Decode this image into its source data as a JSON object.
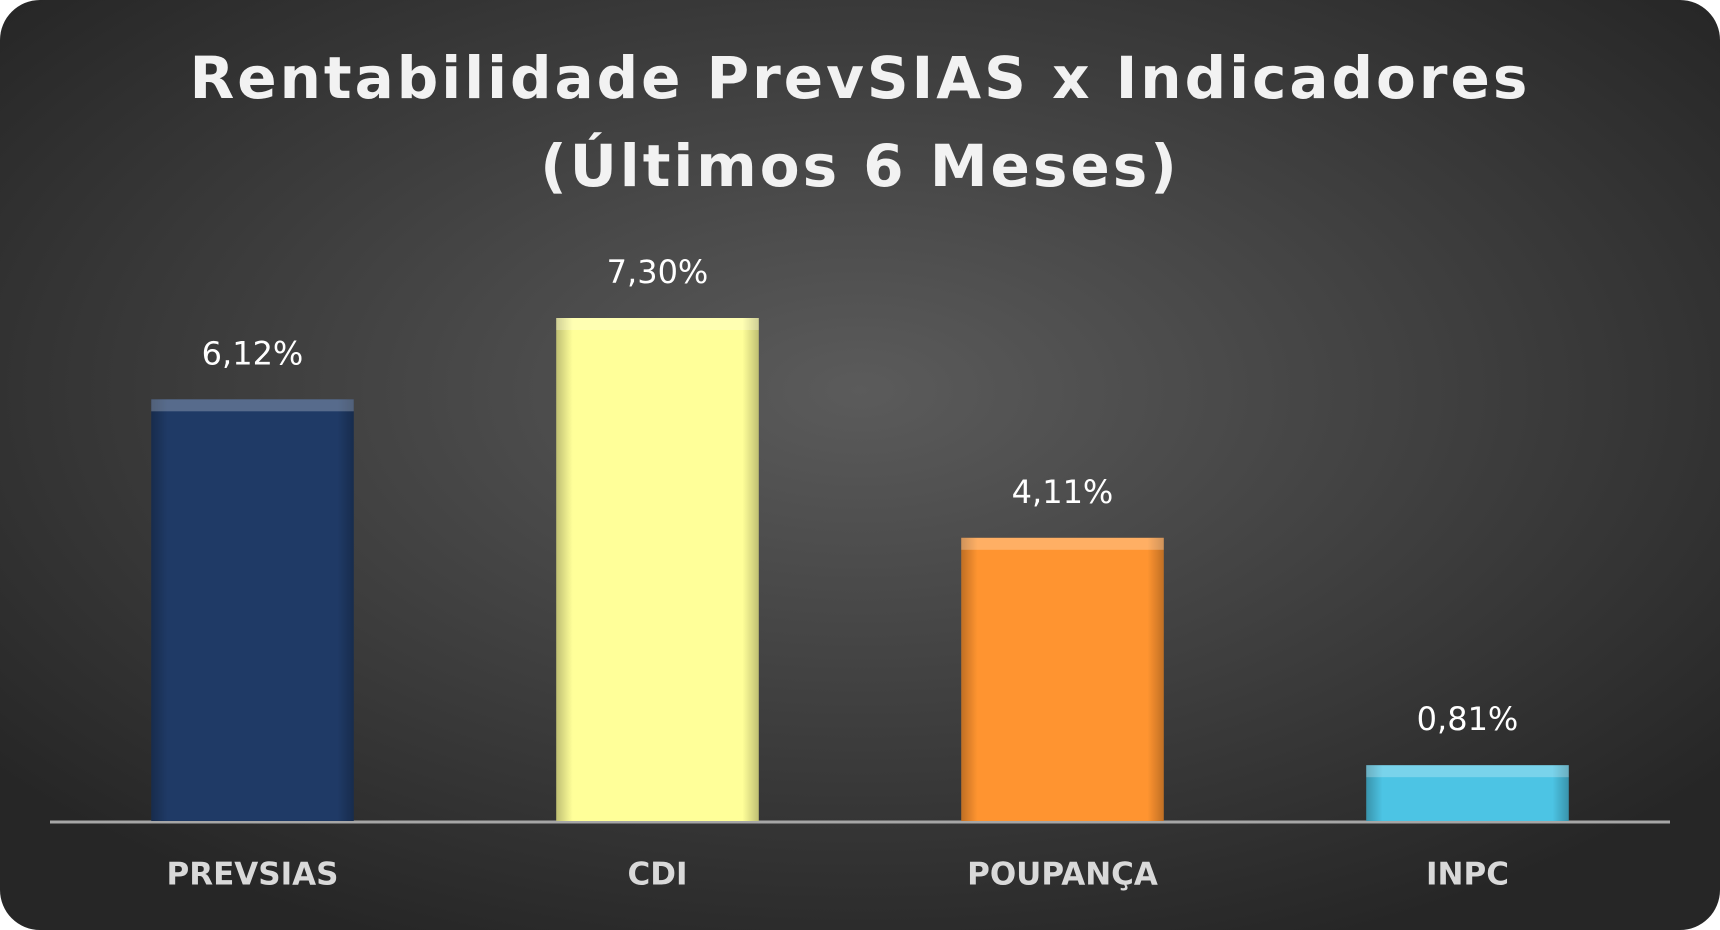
{
  "chart_data": {
    "type": "bar",
    "title": [
      "Rentabilidade PrevSIAS x Indicadores",
      "(Últimos 6 Meses)"
    ],
    "categories": [
      "PREVSIAS",
      "CDI",
      "POUPANÇA",
      "INPC"
    ],
    "values": [
      6.12,
      7.3,
      4.11,
      0.81
    ],
    "value_labels": [
      "6,12%",
      "7,30%",
      "4,11%",
      "0,81%"
    ],
    "colors": [
      "#1f3a66",
      "#ffff99",
      "#ff9430",
      "#4cc4e4"
    ]
  }
}
